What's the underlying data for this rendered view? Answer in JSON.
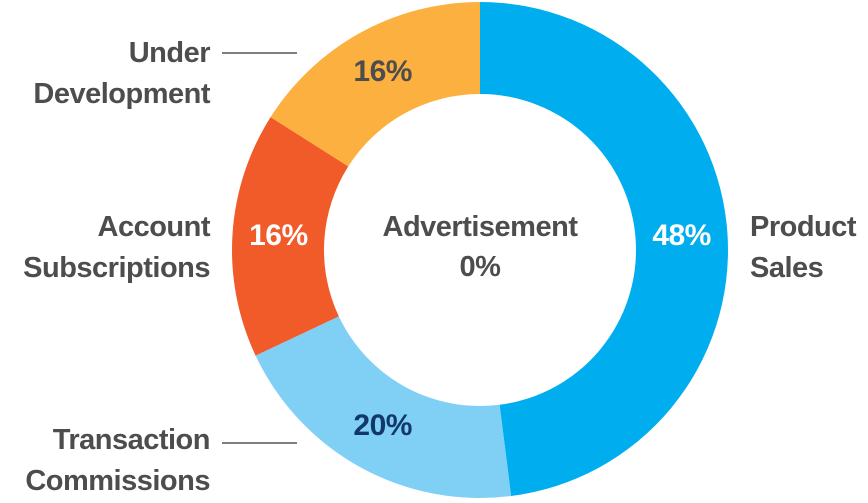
{
  "chart_data": {
    "type": "donut",
    "categories": [
      "Product Sales",
      "Transaction Commissions",
      "Account Subscriptions",
      "Under Development",
      "Advertisement"
    ],
    "values": [
      48,
      20,
      16,
      16,
      0
    ],
    "value_labels": [
      "48%",
      "20%",
      "16%",
      "16%",
      "0%"
    ],
    "colors": [
      "#00aeef",
      "#80d0f6",
      "#f15a29",
      "#fbb040",
      "#cccccc"
    ],
    "label_colors": [
      "#ffffff",
      "#13376b",
      "#ffffff",
      "#4d4d4d",
      "#4d4d4d"
    ]
  }
}
